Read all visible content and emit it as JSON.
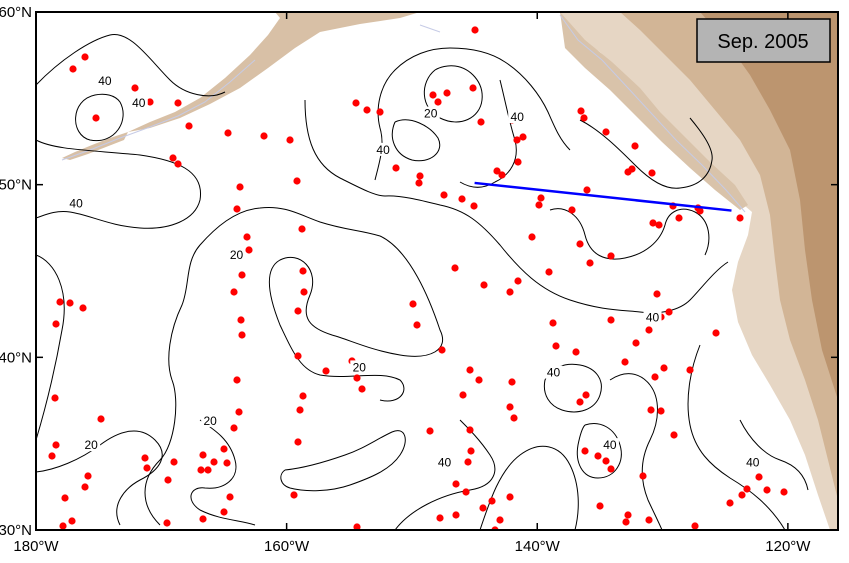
{
  "map": {
    "date_badge": "Sep. 2005",
    "lon_range": [
      -180,
      -116
    ],
    "lat_range": [
      30,
      60
    ],
    "lon_ticks": [
      {
        "value": -180,
        "label": "180°W"
      },
      {
        "value": -160,
        "label": "160°W"
      },
      {
        "value": -140,
        "label": "140°W"
      },
      {
        "value": -120,
        "label": "120°W"
      }
    ],
    "lat_ticks": [
      {
        "value": 30,
        "label": "30°N"
      },
      {
        "value": 40,
        "label": "40°N"
      },
      {
        "value": 50,
        "label": "50°N"
      },
      {
        "value": 60,
        "label": "60°N"
      }
    ],
    "contour_labels": [
      {
        "text": "40",
        "lon": -174.5,
        "lat": 55.9
      },
      {
        "text": "40",
        "lon": -171.8,
        "lat": 54.6
      },
      {
        "text": "40",
        "lon": -176.8,
        "lat": 48.8
      },
      {
        "text": "20",
        "lon": -164.0,
        "lat": 45.8
      },
      {
        "text": "20",
        "lon": -166.1,
        "lat": 36.2
      },
      {
        "text": "20",
        "lon": -175.6,
        "lat": 34.8
      },
      {
        "text": "20",
        "lon": -154.2,
        "lat": 39.3
      },
      {
        "text": "20",
        "lon": -148.5,
        "lat": 54.0
      },
      {
        "text": "40",
        "lon": -152.3,
        "lat": 51.9
      },
      {
        "text": "40",
        "lon": -141.6,
        "lat": 53.8
      },
      {
        "text": "40",
        "lon": -147.4,
        "lat": 33.8
      },
      {
        "text": "40",
        "lon": -138.7,
        "lat": 39.0
      },
      {
        "text": "40",
        "lon": -134.2,
        "lat": 34.8
      },
      {
        "text": "40",
        "lon": -130.8,
        "lat": 42.2
      },
      {
        "text": "40",
        "lon": -122.8,
        "lat": 33.8
      }
    ],
    "section_line": {
      "start": [
        -145.0,
        50.1
      ],
      "end": [
        -124.5,
        48.5
      ]
    },
    "colors": {
      "stations": "#ff0000",
      "section_line": "#0000ff",
      "contours": "#000000",
      "land_light": "#e8ddd2",
      "land_mid": "#d8c0a6",
      "land_dark": "#b89068",
      "coastline": "#c6cbe6",
      "badge_fill": "#b4b4b4"
    }
  }
}
